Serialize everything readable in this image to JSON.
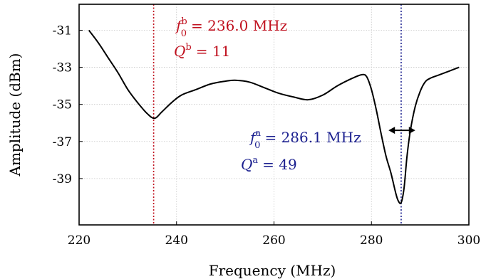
{
  "chart_data": {
    "type": "line",
    "xlabel": "Frequency (MHz)",
    "ylabel": "Amplitude (dBm)",
    "xlim": [
      220,
      300
    ],
    "ylim": [
      -41.5,
      -29.6
    ],
    "xticks": [
      220,
      240,
      260,
      280,
      300
    ],
    "xtick_labels": [
      "220",
      "240",
      "260",
      "280",
      "300"
    ],
    "yticks": [
      -31,
      -33,
      -35,
      -37,
      -39
    ],
    "ytick_labels": [
      "-31",
      "-33",
      "-35",
      "-37",
      "-39"
    ],
    "grid": true,
    "series": [
      {
        "color": "#000000",
        "x": [
          222,
          224,
          226,
          228,
          230,
          232,
          234,
          235.5,
          237,
          239,
          241,
          244,
          247,
          250,
          252,
          255,
          258,
          261,
          264,
          267,
          270,
          273,
          276,
          278,
          279,
          280,
          281,
          282,
          283,
          284,
          285,
          285.5,
          286.1,
          286.7,
          287.3,
          288,
          289,
          290,
          291,
          292,
          294,
          296,
          298
        ],
        "y": [
          -31.0,
          -31.7,
          -32.5,
          -33.3,
          -34.2,
          -34.9,
          -35.5,
          -35.75,
          -35.4,
          -34.9,
          -34.5,
          -34.2,
          -33.9,
          -33.75,
          -33.7,
          -33.8,
          -34.1,
          -34.4,
          -34.6,
          -34.75,
          -34.5,
          -34.0,
          -33.6,
          -33.4,
          -33.5,
          -34.2,
          -35.3,
          -36.6,
          -37.8,
          -38.7,
          -39.8,
          -40.2,
          -40.3,
          -39.5,
          -37.8,
          -36.4,
          -35.1,
          -34.3,
          -33.8,
          -33.6,
          -33.4,
          -33.2,
          -33.0
        ]
      }
    ],
    "markers": [
      {
        "x": 235.3,
        "color": "#c0111f"
      },
      {
        "x": 286.1,
        "color": "#1a1f8f"
      }
    ],
    "bandwidth_arrow": {
      "x_from": 283.5,
      "x_to": 289.0,
      "y": -36.4,
      "color": "#000000"
    },
    "annotations": {
      "b": {
        "color": "#c0111f",
        "f_symbol": "f",
        "sub": "0",
        "sup": "b",
        "f_value": "= 236.0 MHz",
        "q_symbol": "Q",
        "q_value": "= 11"
      },
      "a": {
        "color": "#1a1f8f",
        "f_symbol": "f",
        "sub": "0",
        "sup": "a",
        "f_value": "= 286.1 MHz",
        "q_symbol": "Q",
        "q_value": "= 49"
      }
    }
  }
}
